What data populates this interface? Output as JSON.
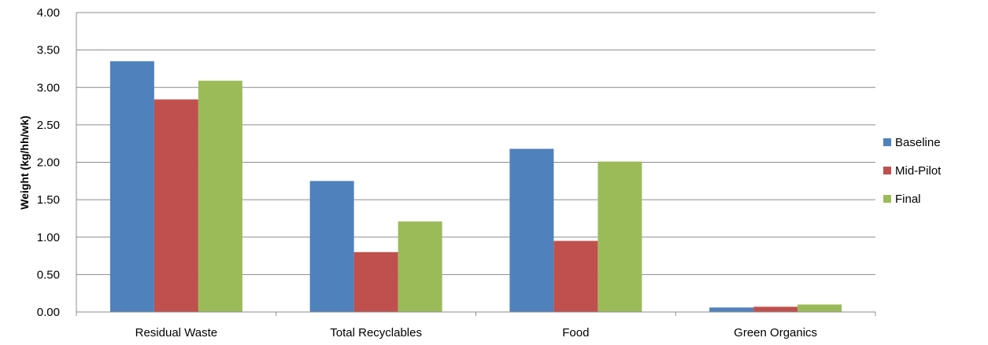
{
  "chart_data": {
    "type": "bar",
    "title": "",
    "xlabel": "",
    "ylabel": "Weight (kg/hh/wk)",
    "ylim": [
      0,
      4
    ],
    "ytick_step": 0.5,
    "ytick_labels": [
      "0.00",
      "0.50",
      "1.00",
      "1.50",
      "2.00",
      "2.50",
      "3.00",
      "3.50",
      "4.00"
    ],
    "grid": true,
    "legend_position": "right",
    "categories": [
      "Residual Waste",
      "Total Recyclables",
      "Food",
      "Green Organics"
    ],
    "series": [
      {
        "name": "Baseline",
        "color": "#4f81bd",
        "values": [
          3.35,
          1.75,
          2.18,
          0.06
        ]
      },
      {
        "name": "Mid-Pilot",
        "color": "#c0504d",
        "values": [
          2.84,
          0.8,
          0.95,
          0.07
        ]
      },
      {
        "name": "Final",
        "color": "#9bbb59",
        "values": [
          3.09,
          1.21,
          2.01,
          0.1
        ]
      }
    ]
  }
}
